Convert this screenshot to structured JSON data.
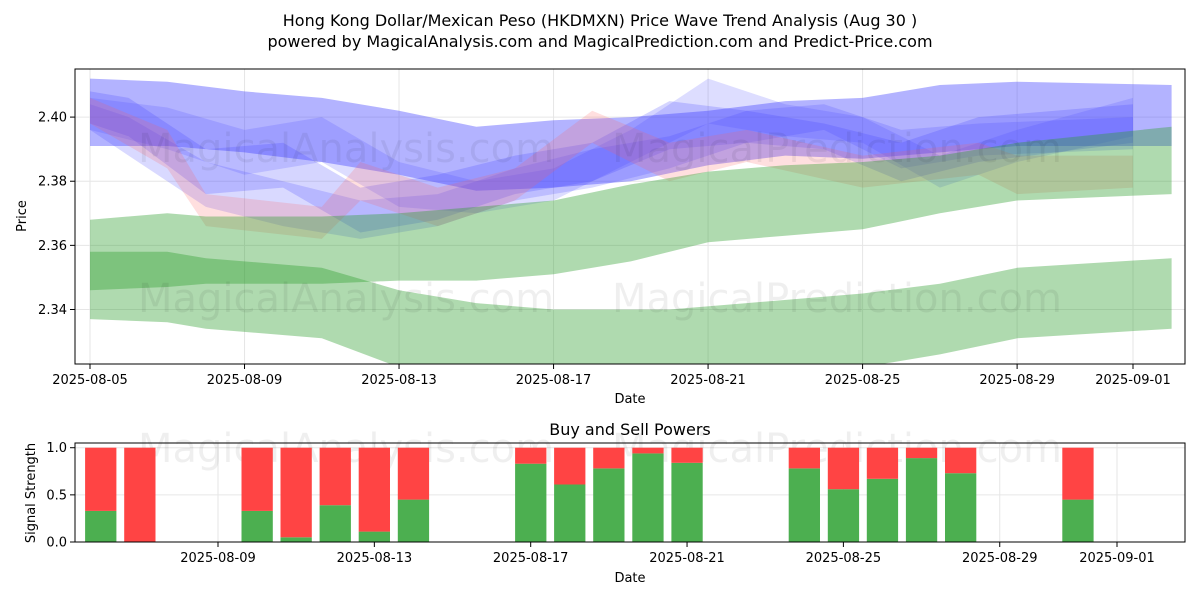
{
  "title_line1": "Hong Kong Dollar/Mexican Peso (HKDMXN) Price Wave Trend Analysis (Aug 30 )",
  "title_line2": "powered by MagicalAnalysis.com and MagicalPrediction.com and Predict-Price.com",
  "watermark_left": "MagicalAnalysis.com",
  "watermark_right": "MagicalPrediction.com",
  "colors": {
    "blue_band": "#4040ff",
    "red_band": "#ff6060",
    "green_band": "#2e9e2e",
    "buy": "#4caf50",
    "sell": "#ff4444",
    "grid": "#e6e6e6"
  },
  "chart_data": [
    {
      "type": "area",
      "title": "",
      "xlabel": "Date",
      "ylabel": "Price",
      "x_range": [
        "2025-08-05",
        "2025-09-02"
      ],
      "ylim": [
        2.323,
        2.415
      ],
      "xticks": [
        "2025-08-05",
        "2025-08-09",
        "2025-08-13",
        "2025-08-17",
        "2025-08-21",
        "2025-08-25",
        "2025-08-29",
        "2025-09-01"
      ],
      "yticks": [
        2.34,
        2.36,
        2.38,
        2.4
      ],
      "series": [
        {
          "name": "blue-wave-envelope",
          "color": "blue",
          "opacity": 0.4,
          "x": [
            "2025-08-05",
            "2025-08-07",
            "2025-08-09",
            "2025-08-11",
            "2025-08-13",
            "2025-08-15",
            "2025-08-17",
            "2025-08-19",
            "2025-08-21",
            "2025-08-23",
            "2025-08-25",
            "2025-08-27",
            "2025-08-29",
            "2025-09-02"
          ],
          "upper": [
            2.412,
            2.411,
            2.408,
            2.406,
            2.402,
            2.397,
            2.399,
            2.4,
            2.402,
            2.405,
            2.406,
            2.41,
            2.411,
            2.41
          ],
          "lower": [
            2.391,
            2.391,
            2.389,
            2.386,
            2.382,
            2.377,
            2.378,
            2.38,
            2.385,
            2.388,
            2.387,
            2.389,
            2.391,
            2.391
          ]
        },
        {
          "name": "blue-wave-a",
          "color": "blue",
          "opacity": 0.22,
          "x": [
            "2025-08-05",
            "2025-08-06",
            "2025-08-08",
            "2025-08-10",
            "2025-08-12",
            "2025-08-14",
            "2025-08-16",
            "2025-08-18",
            "2025-08-20",
            "2025-08-22",
            "2025-08-24",
            "2025-08-26",
            "2025-08-28",
            "2025-09-01"
          ],
          "upper": [
            2.408,
            2.406,
            2.39,
            2.392,
            2.378,
            2.382,
            2.388,
            2.392,
            2.405,
            2.402,
            2.398,
            2.392,
            2.4,
            2.404
          ],
          "lower": [
            2.398,
            2.394,
            2.376,
            2.378,
            2.364,
            2.368,
            2.376,
            2.38,
            2.39,
            2.392,
            2.39,
            2.38,
            2.386,
            2.392
          ]
        },
        {
          "name": "blue-wave-b",
          "color": "blue",
          "opacity": 0.18,
          "x": [
            "2025-08-05",
            "2025-08-07",
            "2025-08-09",
            "2025-08-11",
            "2025-08-13",
            "2025-08-15",
            "2025-08-17",
            "2025-08-19",
            "2025-08-21",
            "2025-08-23",
            "2025-08-25",
            "2025-08-27",
            "2025-08-29",
            "2025-09-01"
          ],
          "upper": [
            2.406,
            2.403,
            2.396,
            2.4,
            2.386,
            2.38,
            2.384,
            2.396,
            2.412,
            2.404,
            2.4,
            2.388,
            2.396,
            2.406
          ],
          "lower": [
            2.396,
            2.39,
            2.382,
            2.386,
            2.372,
            2.37,
            2.374,
            2.386,
            2.398,
            2.394,
            2.392,
            2.378,
            2.386,
            2.394
          ]
        },
        {
          "name": "blue-wave-c",
          "color": "blue",
          "opacity": 0.2,
          "x": [
            "2025-08-05",
            "2025-08-06",
            "2025-08-08",
            "2025-08-10",
            "2025-08-12",
            "2025-08-14",
            "2025-08-16",
            "2025-08-18",
            "2025-08-20",
            "2025-08-22",
            "2025-08-24",
            "2025-08-26",
            "2025-08-28",
            "2025-09-01"
          ],
          "upper": [
            2.404,
            2.4,
            2.386,
            2.38,
            2.374,
            2.376,
            2.384,
            2.39,
            2.394,
            2.402,
            2.404,
            2.396,
            2.398,
            2.4
          ],
          "lower": [
            2.396,
            2.388,
            2.372,
            2.366,
            2.362,
            2.366,
            2.374,
            2.378,
            2.384,
            2.392,
            2.396,
            2.384,
            2.388,
            2.39
          ]
        },
        {
          "name": "red-wave",
          "color": "red",
          "opacity": 0.2,
          "x": [
            "2025-08-05",
            "2025-08-07",
            "2025-08-08",
            "2025-08-11",
            "2025-08-12",
            "2025-08-14",
            "2025-08-16",
            "2025-08-18",
            "2025-08-20",
            "2025-08-22",
            "2025-08-25",
            "2025-08-28",
            "2025-08-29",
            "2025-09-01"
          ],
          "upper": [
            2.406,
            2.396,
            2.376,
            2.372,
            2.386,
            2.378,
            2.384,
            2.402,
            2.392,
            2.396,
            2.388,
            2.392,
            2.388,
            2.388
          ],
          "lower": [
            2.398,
            2.384,
            2.366,
            2.362,
            2.374,
            2.366,
            2.374,
            2.392,
            2.38,
            2.386,
            2.378,
            2.382,
            2.376,
            2.378
          ]
        },
        {
          "name": "green-lower-band",
          "color": "green",
          "opacity": 0.38,
          "x": [
            "2025-08-05",
            "2025-08-07",
            "2025-08-08",
            "2025-08-11",
            "2025-08-13",
            "2025-08-15",
            "2025-08-17",
            "2025-08-19",
            "2025-08-20",
            "2025-08-22",
            "2025-08-25",
            "2025-08-27",
            "2025-08-29",
            "2025-09-02"
          ],
          "upper": [
            2.358,
            2.358,
            2.356,
            2.353,
            2.346,
            2.342,
            2.34,
            2.34,
            2.34,
            2.342,
            2.345,
            2.348,
            2.353,
            2.356
          ],
          "lower": [
            2.337,
            2.336,
            2.334,
            2.331,
            2.322,
            2.318,
            2.317,
            2.317,
            2.318,
            2.319,
            2.322,
            2.326,
            2.331,
            2.334
          ]
        },
        {
          "name": "green-upper-band",
          "color": "green",
          "opacity": 0.38,
          "x": [
            "2025-08-05",
            "2025-08-07",
            "2025-08-08",
            "2025-08-11",
            "2025-08-13",
            "2025-08-15",
            "2025-08-17",
            "2025-08-19",
            "2025-08-21",
            "2025-08-23",
            "2025-08-25",
            "2025-08-27",
            "2025-08-29",
            "2025-09-02"
          ],
          "upper": [
            2.368,
            2.37,
            2.369,
            2.369,
            2.37,
            2.372,
            2.374,
            2.379,
            2.383,
            2.385,
            2.386,
            2.388,
            2.392,
            2.397
          ],
          "lower": [
            2.346,
            2.347,
            2.348,
            2.348,
            2.349,
            2.349,
            2.351,
            2.355,
            2.361,
            2.363,
            2.365,
            2.37,
            2.374,
            2.376
          ]
        }
      ]
    },
    {
      "type": "bar",
      "title": "Buy and Sell Powers",
      "xlabel": "Date",
      "ylabel": "Signal Strength",
      "ylim": [
        0,
        1.05
      ],
      "yticks": [
        0.0,
        0.5,
        1.0
      ],
      "ytick_labels": [
        "0.0",
        "0.5",
        "1.0"
      ],
      "xticks": [
        "2025-08-09",
        "2025-08-13",
        "2025-08-17",
        "2025-08-21",
        "2025-08-25",
        "2025-08-29",
        "2025-09-01"
      ],
      "categories": [
        "2025-08-06",
        "2025-08-07",
        "2025-08-10",
        "2025-08-11",
        "2025-08-12",
        "2025-08-13",
        "2025-08-14",
        "2025-08-17",
        "2025-08-18",
        "2025-08-19",
        "2025-08-20",
        "2025-08-21",
        "2025-08-24",
        "2025-08-25",
        "2025-08-26",
        "2025-08-27",
        "2025-08-28",
        "2025-08-31"
      ],
      "series": [
        {
          "name": "Buy",
          "values": [
            0.33,
            0.0,
            0.33,
            0.05,
            0.39,
            0.11,
            0.45,
            0.83,
            0.61,
            0.78,
            0.94,
            0.84,
            0.78,
            0.56,
            0.67,
            0.89,
            0.73,
            0.45
          ]
        },
        {
          "name": "Sell",
          "values": [
            0.67,
            1.0,
            0.67,
            0.95,
            0.61,
            0.89,
            0.55,
            0.17,
            0.39,
            0.22,
            0.06,
            0.16,
            0.22,
            0.44,
            0.33,
            0.11,
            0.27,
            0.55
          ]
        }
      ]
    }
  ]
}
